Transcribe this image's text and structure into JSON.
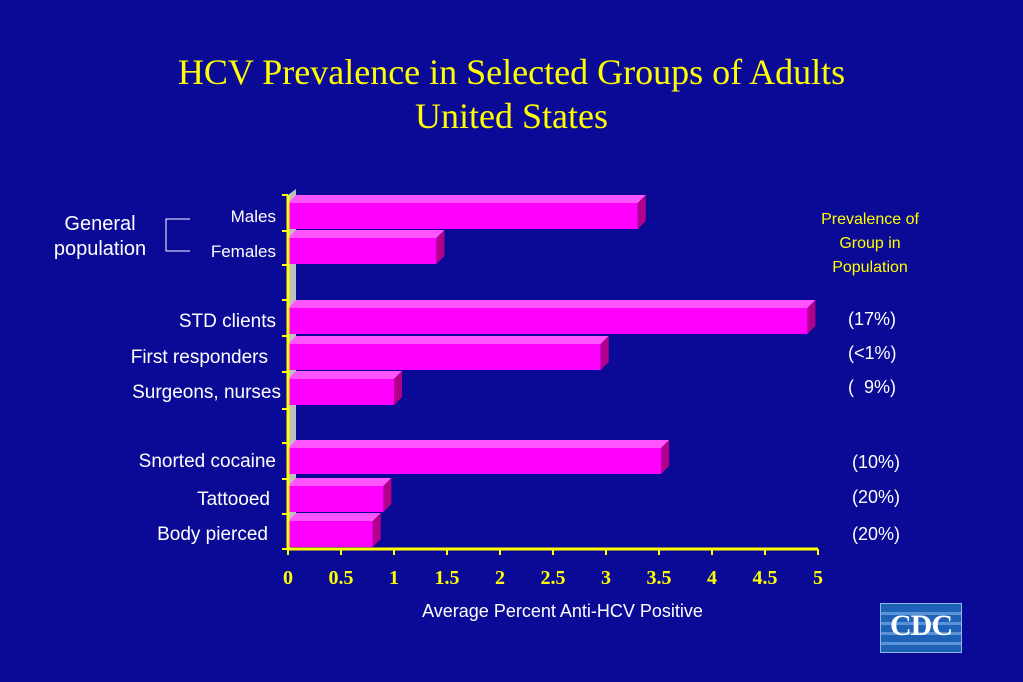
{
  "title_line1": "HCV Prevalence in Selected Groups of Adults",
  "title_line2": "United States",
  "group_label_line1": "General",
  "group_label_line2": "population",
  "prevalence_header_line1": "Prevalence of",
  "prevalence_header_line2": "Group in",
  "prevalence_header_line3": "Population",
  "logo_text": "CDC",
  "colors": {
    "background": "#0B0A96",
    "bar_front": "#FF00FF",
    "bar_top": "#FF55FF",
    "bar_side": "#B3008C",
    "axis": "#FFFF00",
    "axis_wall": "#C0C0C0",
    "title": "#FFFF00"
  },
  "chart_data": {
    "type": "bar",
    "orientation": "horizontal",
    "title": "HCV Prevalence in Selected Groups of Adults United States",
    "xlabel": "Average Percent Anti-HCV Positive",
    "xlim": [
      0,
      5
    ],
    "xticks": [
      "0",
      "0.5",
      "1",
      "1.5",
      "2",
      "2.5",
      "3",
      "3.5",
      "4",
      "4.5",
      "5"
    ],
    "categories": [
      "Males",
      "Females",
      "STD clients",
      "First responders",
      "Surgeons, nurses",
      "Snorted cocaine",
      "Tattooed",
      "Body pierced"
    ],
    "values": [
      3.3,
      1.4,
      4.9,
      2.95,
      1.0,
      3.52,
      0.9,
      0.8
    ],
    "prevalence": [
      "",
      "",
      "(17%)",
      "(<1%)",
      "(  9%)",
      "(10%)",
      "(20%)",
      "(20%)"
    ]
  }
}
